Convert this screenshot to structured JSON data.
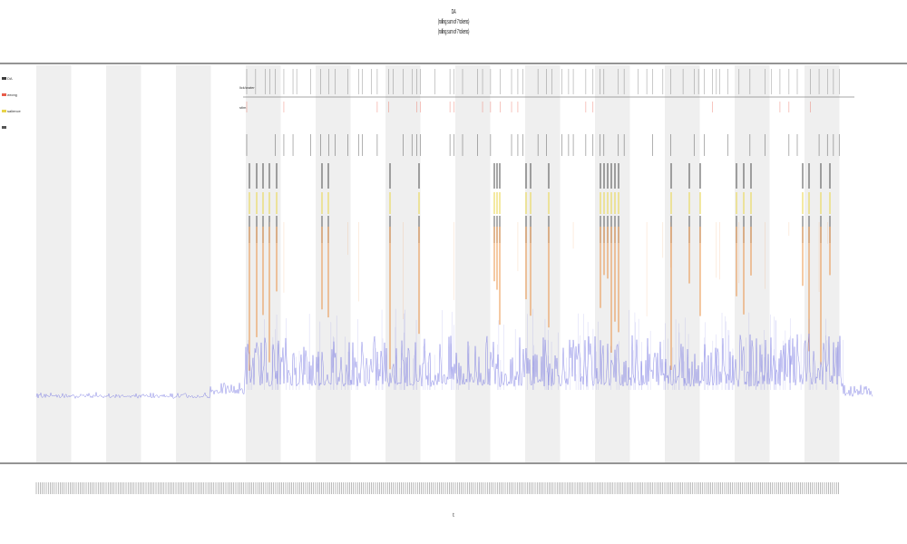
{
  "chart_data": {
    "type": "area",
    "title": [
      "DA",
      "(rolling sum of 7 tokens)",
      "(rolling sum of 7 tokens)"
    ],
    "xlabel": "t",
    "ylabel": "",
    "grid": false,
    "legend_placement": "top-left",
    "legend": [
      {
        "name": "DA",
        "color": "#3d3d3d"
      },
      {
        "name": "wrong",
        "color": "#e85c4a"
      },
      {
        "name": "salience",
        "color": "#e8d44a"
      },
      {
        "name": "",
        "color": "#555555"
      }
    ],
    "band_rows": [
      {
        "label": "lick/water",
        "color": "#222222"
      },
      {
        "label": "stim",
        "color": "#e85c4a"
      }
    ],
    "shaded_trial_blocks": 12,
    "series": [
      {
        "name": "DA",
        "color": "#6b6be0",
        "baseline_level": "low",
        "pattern": "flat then noisy after block 3"
      },
      {
        "name": "salience",
        "color": "#e8a040",
        "pattern": "spikes at stimulus times"
      }
    ]
  },
  "colors": {
    "shade": "#efefef",
    "axis": "#555555",
    "da_line": "#6b6be0",
    "spike_orange": "#e67e22",
    "spike_yellow": "#e8d44a",
    "stim_red": "#e85c4a",
    "black": "#222222"
  }
}
